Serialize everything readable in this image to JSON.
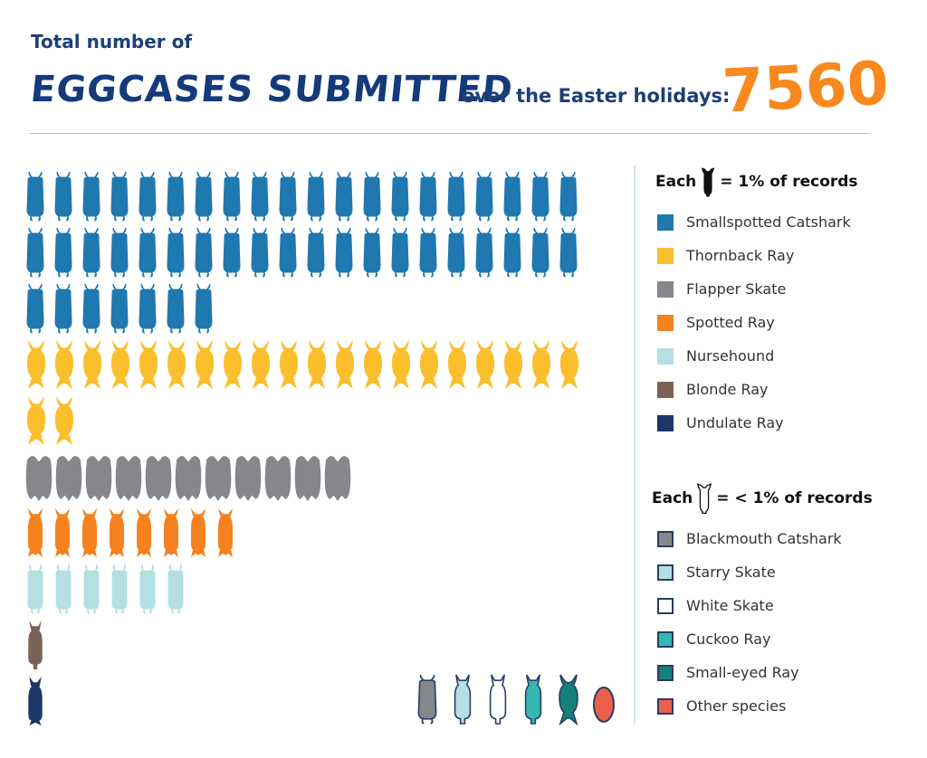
{
  "header": {
    "intro": "Total number of",
    "title": "EGGCASES SUBMITTED",
    "subtitle": "over the Easter holidays:",
    "total": "7560"
  },
  "legend_major": {
    "title_before": "Each",
    "title_after": "= 1% of records",
    "items": [
      {
        "label": "Smallspotted Catshark",
        "color": "#1f78b0"
      },
      {
        "label": "Thornback Ray",
        "color": "#fbbe2c"
      },
      {
        "label": "Flapper Skate",
        "color": "#86878b"
      },
      {
        "label": "Spotted Ray",
        "color": "#f5821f"
      },
      {
        "label": "Nursehound",
        "color": "#b4dfe3"
      },
      {
        "label": "Blonde Ray",
        "color": "#7a6257"
      },
      {
        "label": "Undulate Ray",
        "color": "#1c3866"
      }
    ]
  },
  "legend_minor": {
    "title_before": "Each",
    "title_after": "= < 1% of records",
    "items": [
      {
        "label": "Blackmouth Catshark",
        "color": "#86878b"
      },
      {
        "label": "Starry Skate",
        "color": "#b4dfe3"
      },
      {
        "label": "White Skate",
        "color": "#ffffff"
      },
      {
        "label": "Cuckoo Ray",
        "color": "#35b8b4"
      },
      {
        "label": "Small-eyed Ray",
        "color": "#15807a"
      },
      {
        "label": "Other species",
        "color": "#ec5f4c"
      }
    ]
  },
  "pictogram": {
    "percent_rows": [
      {
        "species": "Smallspotted Catshark",
        "count": 47,
        "color": "#1f78b0",
        "shape": "catshark"
      },
      {
        "species": "Thornback Ray",
        "count": 22,
        "color": "#fbbe2c",
        "shape": "thornback"
      },
      {
        "species": "Flapper Skate",
        "count": 11,
        "color": "#86878b",
        "shape": "flapper"
      },
      {
        "species": "Spotted Ray",
        "count": 8,
        "color": "#f5821f",
        "shape": "spotted"
      },
      {
        "species": "Nursehound",
        "count": 6,
        "color": "#b4dfe3",
        "shape": "nursehound"
      },
      {
        "species": "Blonde Ray",
        "count": 1,
        "color": "#7a6257",
        "shape": "blonde"
      },
      {
        "species": "Undulate Ray",
        "count": 1,
        "color": "#1c3866",
        "shape": "undulate"
      }
    ],
    "minor_icons": [
      {
        "species": "Blackmouth Catshark",
        "color": "#86878b",
        "shape": "catshark"
      },
      {
        "species": "Starry Skate",
        "color": "#b4dfe3",
        "shape": "blonde"
      },
      {
        "species": "White Skate",
        "color": "#ffffff",
        "shape": "blonde"
      },
      {
        "species": "Cuckoo Ray",
        "color": "#35b8b4",
        "shape": "blonde"
      },
      {
        "species": "Small-eyed Ray",
        "color": "#15807a",
        "shape": "thornback"
      },
      {
        "species": "Other species",
        "color": "#ec5f4c",
        "shape": "oval"
      }
    ]
  }
}
